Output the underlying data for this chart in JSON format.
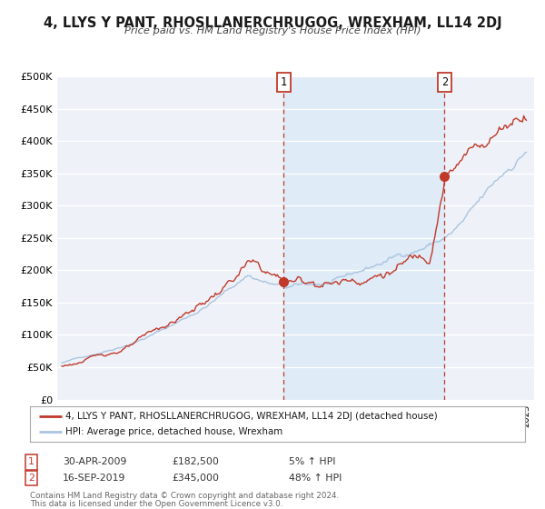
{
  "title": "4, LLYS Y PANT, RHOSLLANERCHRUGOG, WREXHAM, LL14 2DJ",
  "subtitle": "Price paid vs. HM Land Registry's House Price Index (HPI)",
  "ylim": [
    0,
    500000
  ],
  "yticks": [
    0,
    50000,
    100000,
    150000,
    200000,
    250000,
    300000,
    350000,
    400000,
    450000,
    500000
  ],
  "ytick_labels": [
    "£0",
    "£50K",
    "£100K",
    "£150K",
    "£200K",
    "£250K",
    "£300K",
    "£350K",
    "£400K",
    "£450K",
    "£500K"
  ],
  "xlim_start": 1994.7,
  "xlim_end": 2025.5,
  "hpi_color": "#aac4e0",
  "price_color": "#c0392b",
  "marker1_x": 2009.33,
  "marker1_y": 182500,
  "marker2_x": 2019.71,
  "marker2_y": 345000,
  "marker1_label": "1",
  "marker2_label": "2",
  "legend_line1": "4, LLYS Y PANT, RHOSLLANERCHRUGOG, WREXHAM, LL14 2DJ (detached house)",
  "legend_line2": "HPI: Average price, detached house, Wrexham",
  "table_row1_num": "1",
  "table_row1_date": "30-APR-2009",
  "table_row1_price": "£182,500",
  "table_row1_hpi": "5% ↑ HPI",
  "table_row2_num": "2",
  "table_row2_date": "16-SEP-2019",
  "table_row2_price": "£345,000",
  "table_row2_hpi": "48% ↑ HPI",
  "footnote1": "Contains HM Land Registry data © Crown copyright and database right 2024.",
  "footnote2": "This data is licensed under the Open Government Licence v3.0.",
  "background_color": "#eef2f8",
  "grid_color": "#ffffff"
}
